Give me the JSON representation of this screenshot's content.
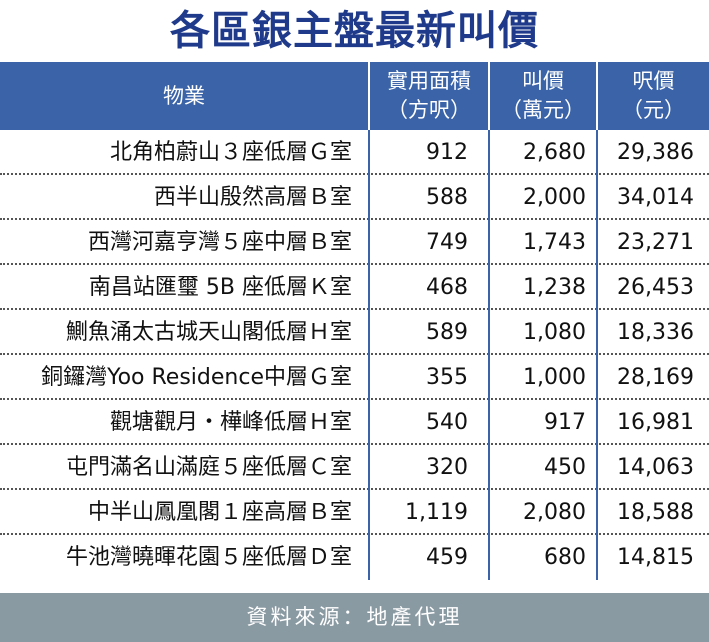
{
  "title": "各區銀主盤最新叫價",
  "header": {
    "col0": "物業",
    "col1_line1": "實用面積",
    "col1_line2": "（方呎）",
    "col2_line1": "叫價",
    "col2_line2": "（萬元）",
    "col3_line1": "呎價",
    "col3_line2": "（元）"
  },
  "rows": [
    {
      "property": "北角柏蔚山３座低層Ｇ室",
      "area": "912",
      "price": "2,680",
      "ppsf": "29,386"
    },
    {
      "property": "西半山殷然高層Ｂ室",
      "area": "588",
      "price": "2,000",
      "ppsf": "34,014"
    },
    {
      "property": "西灣河嘉亨灣５座中層Ｂ室",
      "area": "749",
      "price": "1,743",
      "ppsf": "23,271"
    },
    {
      "property": "南昌站匯璽 5B 座低層Ｋ室",
      "area": "468",
      "price": "1,238",
      "ppsf": "26,453"
    },
    {
      "property": "鰂魚涌太古城天山閣低層Ｈ室",
      "area": "589",
      "price": "1,080",
      "ppsf": "18,336"
    },
    {
      "property": "銅鑼灣Yoo Residence中層Ｇ室",
      "area": "355",
      "price": "1,000",
      "ppsf": "28,169"
    },
    {
      "property": "觀塘觀月・樺峰低層Ｈ室",
      "area": "540",
      "price": "917",
      "ppsf": "16,981"
    },
    {
      "property": "屯門滿名山滿庭５座低層Ｃ室",
      "area": "320",
      "price": "450",
      "ppsf": "14,063"
    },
    {
      "property": "中半山鳳凰閣１座高層Ｂ室",
      "area": "1,119",
      "price": "2,080",
      "ppsf": "18,588"
    },
    {
      "property": "牛池灣曉暉花園５座低層Ｄ室",
      "area": "459",
      "price": "680",
      "ppsf": "14,815"
    }
  ],
  "footer": "資料來源：地產代理"
}
